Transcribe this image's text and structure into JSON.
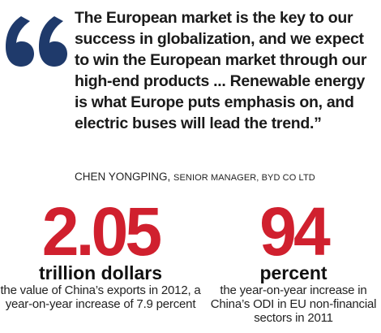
{
  "quote": {
    "text": "The European market is the key to our success in globalization, and we expect to win the European market through our high-end products ... Renewable energy is what Europe puts emphasis on, and electric buses will lead the trend.”",
    "quote_color": "#1f3a6b"
  },
  "attribution": {
    "name": "CHEN YONGPING,",
    "title": "SENIOR MANAGER, BYD CO LTD"
  },
  "stats": [
    {
      "number": "2.05",
      "unit": "trillion dollars",
      "description": "the value of China’s exports in 2012, a year-on-year increase of 7.9 percent"
    },
    {
      "number": "94",
      "unit": "percent",
      "description": "the year-on-year increase in China’s ODI in EU non-financial sectors in 2011"
    }
  ],
  "colors": {
    "accent_red": "#d0202e",
    "text": "#1a1a1a"
  }
}
